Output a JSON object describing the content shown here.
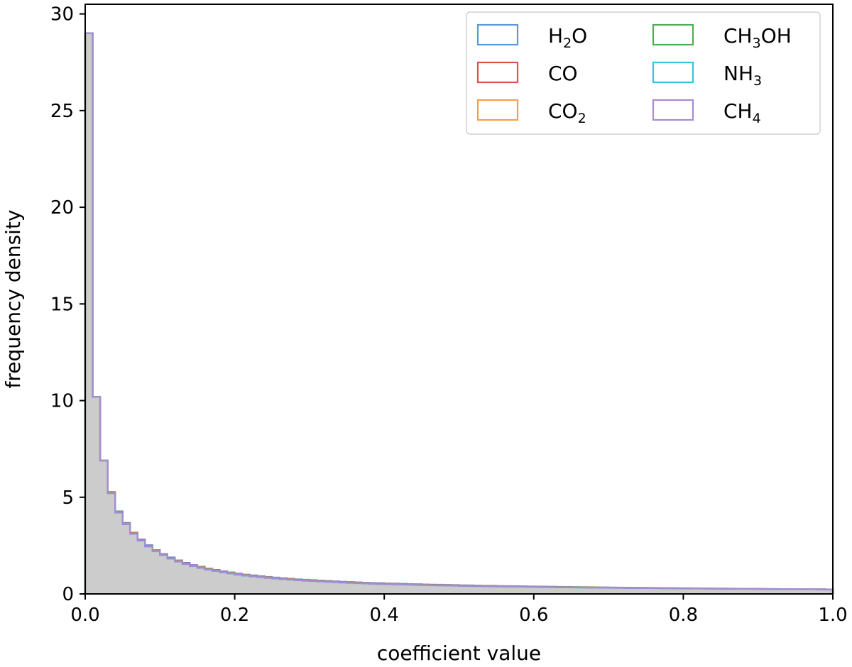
{
  "chart_data": {
    "type": "histogram",
    "title": "",
    "xlabel": "coefficient value",
    "ylabel": "frequency density",
    "xlim": [
      0.0,
      1.0
    ],
    "ylim": [
      0,
      30.5
    ],
    "xticks": [
      "0.0",
      "0.2",
      "0.4",
      "0.6",
      "0.8",
      "1.0"
    ],
    "yticks": [
      "0",
      "5",
      "10",
      "15",
      "20",
      "25",
      "30"
    ],
    "grid": false,
    "legend_position": "top-right",
    "bin_width": 0.01,
    "bin_edges_start": 0.0,
    "background_distribution": {
      "color": "#cccccc",
      "values": [
        29.0,
        10.2,
        6.9,
        5.2,
        4.2,
        3.6,
        3.1,
        2.75,
        2.45,
        2.2,
        2.0,
        1.82,
        1.67,
        1.54,
        1.43,
        1.34,
        1.25,
        1.18,
        1.11,
        1.05,
        0.99,
        0.94,
        0.9,
        0.86,
        0.82,
        0.79,
        0.76,
        0.73,
        0.7,
        0.68,
        0.66,
        0.64,
        0.62,
        0.6,
        0.58,
        0.565,
        0.55,
        0.535,
        0.52,
        0.51,
        0.5,
        0.49,
        0.48,
        0.47,
        0.46,
        0.45,
        0.44,
        0.435,
        0.425,
        0.42,
        0.41,
        0.405,
        0.4,
        0.39,
        0.385,
        0.38,
        0.375,
        0.37,
        0.365,
        0.36,
        0.355,
        0.35,
        0.345,
        0.34,
        0.335,
        0.33,
        0.327,
        0.323,
        0.32,
        0.316,
        0.312,
        0.309,
        0.305,
        0.302,
        0.299,
        0.296,
        0.293,
        0.29,
        0.287,
        0.284,
        0.281,
        0.278,
        0.275,
        0.272,
        0.27,
        0.267,
        0.265,
        0.262,
        0.26,
        0.257,
        0.255,
        0.252,
        0.25,
        0.248,
        0.246,
        0.244,
        0.242,
        0.24,
        0.238,
        0.236
      ]
    },
    "series": [
      {
        "name": "H2O",
        "label_main": "H",
        "label_sub": "2",
        "label_tail": "O",
        "color": "#5b9bd5",
        "offset": 0.08
      },
      {
        "name": "CO",
        "label_main": "CO",
        "label_sub": "",
        "label_tail": "",
        "color": "#d9534f",
        "offset": 0.05
      },
      {
        "name": "CO2",
        "label_main": "CO",
        "label_sub": "2",
        "label_tail": "",
        "color": "#f5a142",
        "offset": 0.03
      },
      {
        "name": "CH3OH",
        "label_main": "CH",
        "label_sub": "3",
        "label_tail": "OH",
        "color": "#4caf50",
        "offset": 0.02
      },
      {
        "name": "NH3",
        "label_main": "NH",
        "label_sub": "3",
        "label_tail": "",
        "color": "#36c5d8",
        "offset": 0.0
      },
      {
        "name": "CH4",
        "label_main": "CH",
        "label_sub": "4",
        "label_tail": "",
        "color": "#a98ad4",
        "offset": 0.01
      }
    ]
  }
}
